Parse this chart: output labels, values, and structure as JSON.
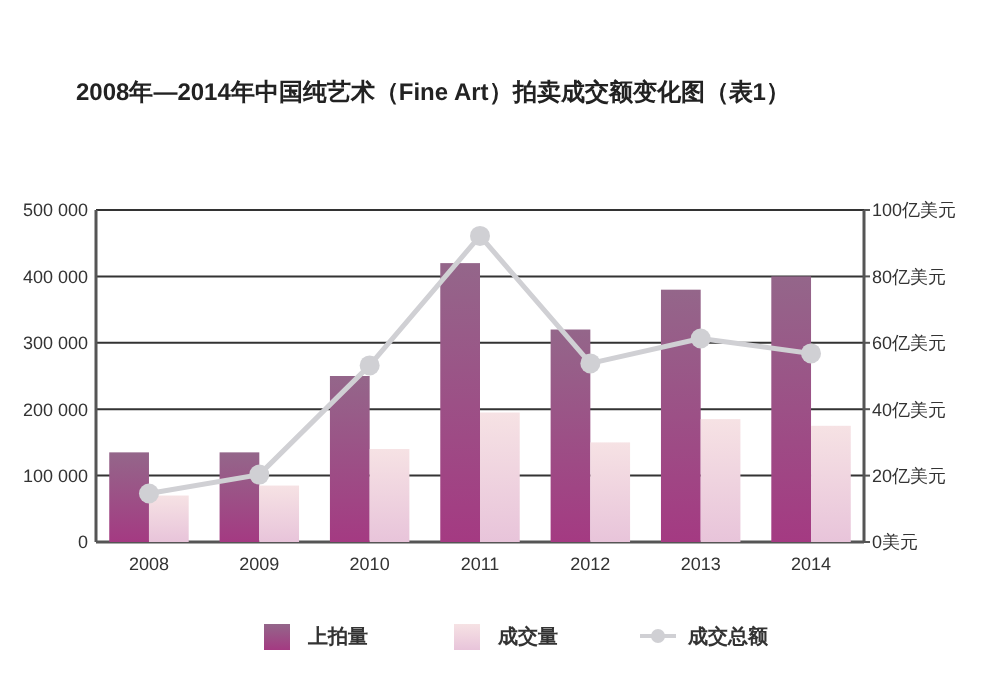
{
  "chart_data": {
    "type": "bar",
    "title": "2008年—2014年中国纯艺术（Fine Art）拍卖成交额变化图（表1）",
    "categories": [
      "2008",
      "2009",
      "2010",
      "2011",
      "2012",
      "2013",
      "2014"
    ],
    "series": [
      {
        "name": "上拍量",
        "color": "#a43a82",
        "values": [
          135000,
          135000,
          250000,
          420000,
          320000,
          380000,
          400000
        ]
      },
      {
        "name": "成交量",
        "color": "#e8c4da",
        "values": [
          70000,
          85000,
          140000,
          195000,
          150000,
          185000,
          175000
        ]
      },
      {
        "name": "成交总额",
        "type": "line",
        "axis": "y2",
        "color": "#d0d0d4",
        "marker": "circle",
        "values": [
          14.6,
          20.3,
          53.2,
          92.2,
          53.8,
          61.3,
          56.8
        ]
      }
    ],
    "ylim": [
      0,
      500000
    ],
    "yticks": [
      {
        "value": 0,
        "label": "0"
      },
      {
        "value": 100000,
        "label": "100 000"
      },
      {
        "value": 200000,
        "label": "200 000"
      },
      {
        "value": 300000,
        "label": "300 000"
      },
      {
        "value": 400000,
        "label": "400 000"
      },
      {
        "value": 500000,
        "label": "500 000"
      }
    ],
    "y2lim": [
      0,
      100
    ],
    "y2ticks": [
      {
        "value": 0,
        "label": "0美元"
      },
      {
        "value": 20,
        "label": "20亿美元"
      },
      {
        "value": 40,
        "label": "40亿美元"
      },
      {
        "value": 60,
        "label": "60亿美元"
      },
      {
        "value": 80,
        "label": "80亿美元"
      },
      {
        "value": 100,
        "label": "100亿美元"
      }
    ],
    "grid": "y",
    "legend": "bottom"
  }
}
